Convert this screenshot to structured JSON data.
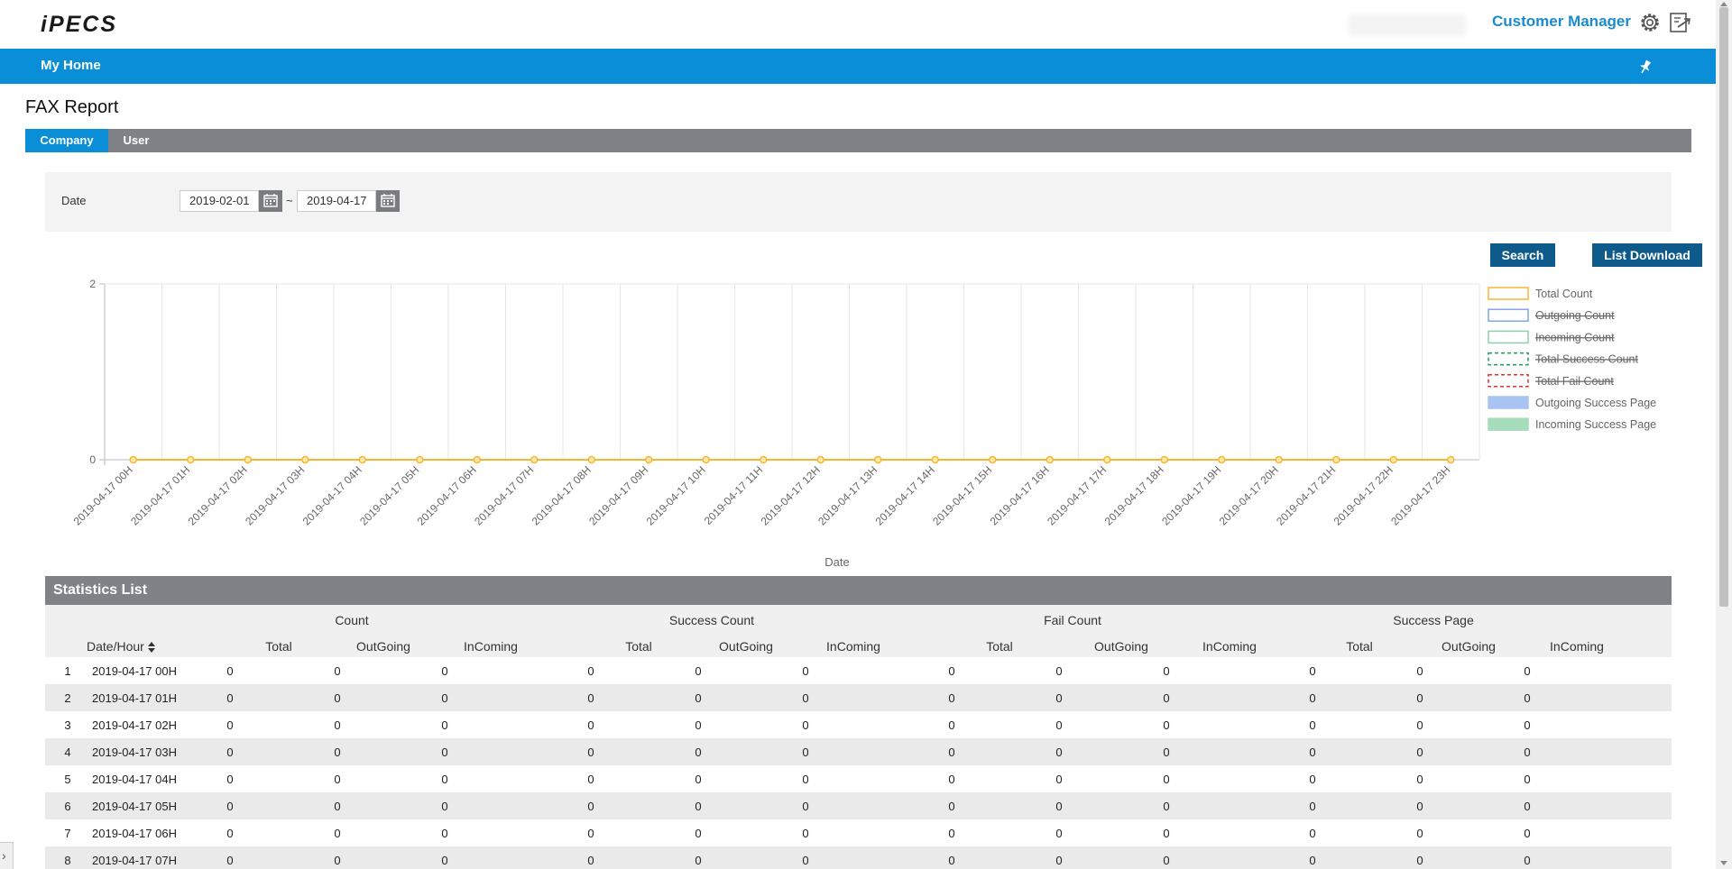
{
  "header": {
    "logo_text": "iPECS",
    "user_label": "Customer Manager",
    "settings_icon": "gear-icon",
    "logout_icon": "logout-icon"
  },
  "nav": {
    "home_label": "My Home",
    "pin_icon": "pin-icon"
  },
  "page": {
    "title": "FAX Report",
    "tabs": [
      {
        "label": "Company",
        "active": true
      },
      {
        "label": "User",
        "active": false
      }
    ]
  },
  "filter": {
    "date_label": "Date",
    "start_date": "2019-02-01",
    "end_date": "2019-04-17",
    "separator": "~",
    "calendar_icon": "calendar-icon"
  },
  "buttons": {
    "search": "Search",
    "download": "List Download"
  },
  "chart_data": {
    "type": "line",
    "xlabel": "Date",
    "ylabel": "",
    "ylim": [
      0,
      2
    ],
    "y_ticks": [
      0,
      2
    ],
    "grid": true,
    "legend_position": "right",
    "categories": [
      "2019-04-17 00H",
      "2019-04-17 01H",
      "2019-04-17 02H",
      "2019-04-17 03H",
      "2019-04-17 04H",
      "2019-04-17 05H",
      "2019-04-17 06H",
      "2019-04-17 07H",
      "2019-04-17 08H",
      "2019-04-17 09H",
      "2019-04-17 10H",
      "2019-04-17 11H",
      "2019-04-17 12H",
      "2019-04-17 13H",
      "2019-04-17 14H",
      "2019-04-17 15H",
      "2019-04-17 16H",
      "2019-04-17 17H",
      "2019-04-17 18H",
      "2019-04-17 19H",
      "2019-04-17 20H",
      "2019-04-17 21H",
      "2019-04-17 22H",
      "2019-04-17 23H"
    ],
    "series": [
      {
        "name": "Total Count",
        "values": [
          0,
          0,
          0,
          0,
          0,
          0,
          0,
          0,
          0,
          0,
          0,
          0,
          0,
          0,
          0,
          0,
          0,
          0,
          0,
          0,
          0,
          0,
          0,
          0
        ],
        "color": "#f5b731",
        "style": "solid",
        "hidden": false
      },
      {
        "name": "Outgoing Count",
        "values": [
          0,
          0,
          0,
          0,
          0,
          0,
          0,
          0,
          0,
          0,
          0,
          0,
          0,
          0,
          0,
          0,
          0,
          0,
          0,
          0,
          0,
          0,
          0,
          0
        ],
        "color": "#7fa8e8",
        "style": "solid",
        "hidden": true
      },
      {
        "name": "Incoming Count",
        "values": [
          0,
          0,
          0,
          0,
          0,
          0,
          0,
          0,
          0,
          0,
          0,
          0,
          0,
          0,
          0,
          0,
          0,
          0,
          0,
          0,
          0,
          0,
          0,
          0
        ],
        "color": "#8fd0a8",
        "style": "solid",
        "hidden": true
      },
      {
        "name": "Total Success Count",
        "values": [
          0,
          0,
          0,
          0,
          0,
          0,
          0,
          0,
          0,
          0,
          0,
          0,
          0,
          0,
          0,
          0,
          0,
          0,
          0,
          0,
          0,
          0,
          0,
          0
        ],
        "color": "#1a9a5a",
        "style": "dashed",
        "hidden": true
      },
      {
        "name": "Total Fail Count",
        "values": [
          0,
          0,
          0,
          0,
          0,
          0,
          0,
          0,
          0,
          0,
          0,
          0,
          0,
          0,
          0,
          0,
          0,
          0,
          0,
          0,
          0,
          0,
          0,
          0
        ],
        "color": "#e03030",
        "style": "dashed",
        "hidden": true
      },
      {
        "name": "Outgoing Success Page",
        "values": [
          0,
          0,
          0,
          0,
          0,
          0,
          0,
          0,
          0,
          0,
          0,
          0,
          0,
          0,
          0,
          0,
          0,
          0,
          0,
          0,
          0,
          0,
          0,
          0
        ],
        "color": "#a9c3f2",
        "style": "bar",
        "hidden": false
      },
      {
        "name": "Incoming Success Page",
        "values": [
          0,
          0,
          0,
          0,
          0,
          0,
          0,
          0,
          0,
          0,
          0,
          0,
          0,
          0,
          0,
          0,
          0,
          0,
          0,
          0,
          0,
          0,
          0,
          0
        ],
        "color": "#a6dcbc",
        "style": "bar",
        "hidden": false
      }
    ]
  },
  "stats": {
    "title": "Statistics List",
    "groups": [
      "Count",
      "Success Count",
      "Fail Count",
      "Success Page"
    ],
    "date_col": "Date/Hour",
    "sub_cols": [
      "Total",
      "OutGoing",
      "InComing"
    ],
    "rows": [
      {
        "no": "1",
        "date": "2019-04-17 00H",
        "vals": [
          "0",
          "0",
          "0",
          "0",
          "0",
          "0",
          "0",
          "0",
          "0",
          "0",
          "0",
          "0"
        ]
      },
      {
        "no": "2",
        "date": "2019-04-17 01H",
        "vals": [
          "0",
          "0",
          "0",
          "0",
          "0",
          "0",
          "0",
          "0",
          "0",
          "0",
          "0",
          "0"
        ]
      },
      {
        "no": "3",
        "date": "2019-04-17 02H",
        "vals": [
          "0",
          "0",
          "0",
          "0",
          "0",
          "0",
          "0",
          "0",
          "0",
          "0",
          "0",
          "0"
        ]
      },
      {
        "no": "4",
        "date": "2019-04-17 03H",
        "vals": [
          "0",
          "0",
          "0",
          "0",
          "0",
          "0",
          "0",
          "0",
          "0",
          "0",
          "0",
          "0"
        ]
      },
      {
        "no": "5",
        "date": "2019-04-17 04H",
        "vals": [
          "0",
          "0",
          "0",
          "0",
          "0",
          "0",
          "0",
          "0",
          "0",
          "0",
          "0",
          "0"
        ]
      },
      {
        "no": "6",
        "date": "2019-04-17 05H",
        "vals": [
          "0",
          "0",
          "0",
          "0",
          "0",
          "0",
          "0",
          "0",
          "0",
          "0",
          "0",
          "0"
        ]
      },
      {
        "no": "7",
        "date": "2019-04-17 06H",
        "vals": [
          "0",
          "0",
          "0",
          "0",
          "0",
          "0",
          "0",
          "0",
          "0",
          "0",
          "0",
          "0"
        ]
      },
      {
        "no": "8",
        "date": "2019-04-17 07H",
        "vals": [
          "0",
          "0",
          "0",
          "0",
          "0",
          "0",
          "0",
          "0",
          "0",
          "0",
          "0",
          "0"
        ]
      }
    ]
  }
}
